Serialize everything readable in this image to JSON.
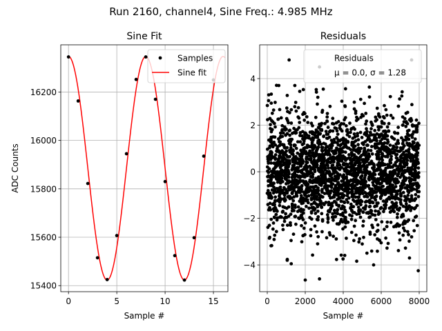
{
  "figure": {
    "suptitle": "Run 2160, channel4, Sine Freq.: 4.985 MHz"
  },
  "chart_data": [
    {
      "type": "line",
      "title": "Sine Fit",
      "xlabel": "Sample #",
      "ylabel": "ADC Counts",
      "xlim": [
        -0.8,
        16.5
      ],
      "ylim": [
        15375,
        16395
      ],
      "xticks": [
        0,
        5,
        10,
        15
      ],
      "yticks": [
        15400,
        15600,
        15800,
        16000,
        16200
      ],
      "grid": true,
      "legend": {
        "placement": "top-right",
        "entries": [
          "Samples",
          "Sine fit"
        ]
      },
      "series": [
        {
          "name": "Samples",
          "kind": "scatter",
          "color": "#000000",
          "x": [
            0,
            1,
            2,
            3,
            4,
            5,
            6,
            7,
            8,
            9,
            10,
            11,
            12,
            13,
            14,
            15
          ],
          "y": [
            16345,
            16163,
            15822,
            15515,
            15425,
            15607,
            15945,
            16252,
            16345,
            16170,
            15830,
            15524,
            15423,
            15598,
            15935,
            16250
          ]
        },
        {
          "name": "Sine fit",
          "kind": "line",
          "color": "#ff0000",
          "model": {
            "offset": 15885,
            "amplitude": 462,
            "period": 8.0,
            "phase_peak_x": 0.0
          },
          "x_range": [
            0,
            16.2
          ]
        }
      ]
    },
    {
      "type": "scatter",
      "title": "Residuals",
      "xlabel": "Sample #",
      "ylabel": "",
      "xlim": [
        -400,
        8400
      ],
      "ylim": [
        -5.15,
        5.45
      ],
      "xticks": [
        0,
        2000,
        4000,
        6000,
        8000
      ],
      "yticks": [
        -4,
        -2,
        0,
        2,
        4
      ],
      "grid": true,
      "legend": {
        "placement": "top-right",
        "entries": [
          "Residuals",
          "μ = 0.0, σ = 1.28"
        ]
      },
      "series": [
        {
          "name": "Residuals",
          "color": "#000000",
          "n_points": 8000,
          "mean": 0.0,
          "std": 1.28,
          "x_range": [
            0,
            7999
          ],
          "notable_points": [
            {
              "x": 1150,
              "y": 4.8
            },
            {
              "x": 2750,
              "y": 4.5
            },
            {
              "x": 7600,
              "y": 4.8
            },
            {
              "x": 2000,
              "y": -4.65
            },
            {
              "x": 2750,
              "y": -4.6
            },
            {
              "x": 7950,
              "y": -4.25
            },
            {
              "x": 1050,
              "y": -3.8
            },
            {
              "x": 5600,
              "y": -4.0
            }
          ]
        }
      ]
    }
  ]
}
